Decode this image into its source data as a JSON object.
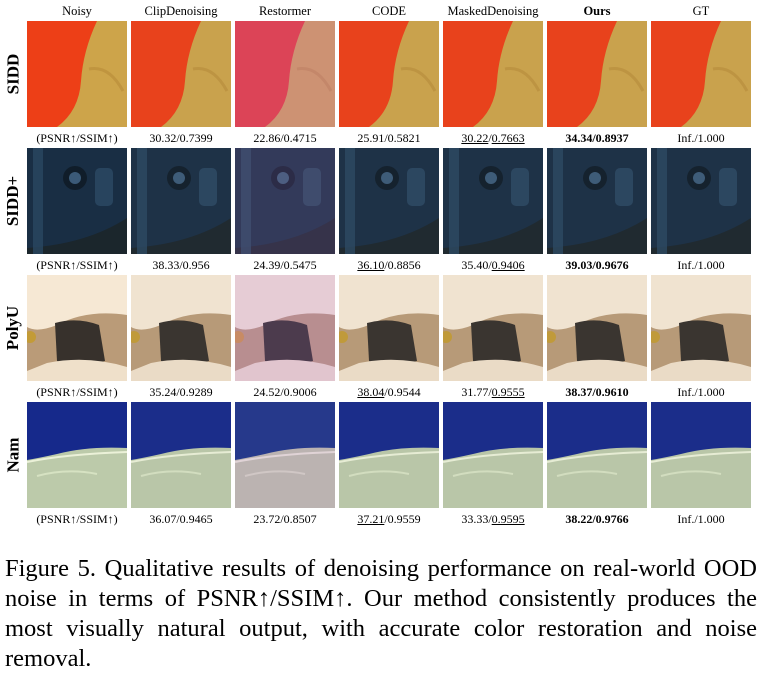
{
  "figure": {
    "columns": [
      "Noisy",
      "ClipDenoising",
      "Restormer",
      "CODE",
      "MaskedDenoising",
      "Ours",
      "GT"
    ],
    "bold_column": "Ours",
    "rows": [
      {
        "label": "SIDD",
        "scene": "orange",
        "metric_header": "(PSNR↑/SSIM↑)",
        "metrics": [
          {
            "method": "ClipDenoising",
            "psnr": "30.32",
            "ssim": "0.7399",
            "psnr_underline": false,
            "ssim_underline": false,
            "bold": false
          },
          {
            "method": "Restormer",
            "psnr": "22.86",
            "ssim": "0.4715",
            "psnr_underline": false,
            "ssim_underline": false,
            "bold": false
          },
          {
            "method": "CODE",
            "psnr": "25.91",
            "ssim": "0.5821",
            "psnr_underline": false,
            "ssim_underline": false,
            "bold": false
          },
          {
            "method": "MaskedDenoising",
            "psnr": "30.22",
            "ssim": "0.7663",
            "psnr_underline": true,
            "ssim_underline": true,
            "bold": false
          },
          {
            "method": "Ours",
            "psnr": "34.34",
            "ssim": "0.8937",
            "psnr_underline": false,
            "ssim_underline": false,
            "bold": true
          },
          {
            "method": "GT",
            "psnr": "Inf.",
            "ssim": "1.000",
            "psnr_underline": false,
            "ssim_underline": false,
            "bold": false
          }
        ]
      },
      {
        "label": "SIDD+",
        "scene": "blue",
        "metric_header": "(PSNR↑/SSIM↑)",
        "metrics": [
          {
            "method": "ClipDenoising",
            "psnr": "38.33",
            "ssim": "0.956",
            "psnr_underline": false,
            "ssim_underline": false,
            "bold": false
          },
          {
            "method": "Restormer",
            "psnr": "24.39",
            "ssim": "0.5475",
            "psnr_underline": false,
            "ssim_underline": false,
            "bold": false
          },
          {
            "method": "CODE",
            "psnr": "36.10",
            "ssim": "0.8856",
            "psnr_underline": true,
            "ssim_underline": false,
            "bold": false
          },
          {
            "method": "MaskedDenoising",
            "psnr": "35.40",
            "ssim": "0.9406",
            "psnr_underline": false,
            "ssim_underline": true,
            "bold": false
          },
          {
            "method": "Ours",
            "psnr": "39.03",
            "ssim": "0.9676",
            "psnr_underline": false,
            "ssim_underline": false,
            "bold": true
          },
          {
            "method": "GT",
            "psnr": "Inf.",
            "ssim": "1.000",
            "psnr_underline": false,
            "ssim_underline": false,
            "bold": false
          }
        ]
      },
      {
        "label": "PolyU",
        "scene": "polyu",
        "metric_header": "(PSNR↑/SSIM↑)",
        "metrics": [
          {
            "method": "ClipDenoising",
            "psnr": "35.24",
            "ssim": "0.9289",
            "psnr_underline": false,
            "ssim_underline": false,
            "bold": false
          },
          {
            "method": "Restormer",
            "psnr": "24.52",
            "ssim": "0.9006",
            "psnr_underline": false,
            "ssim_underline": false,
            "bold": false
          },
          {
            "method": "CODE",
            "psnr": "38.04",
            "ssim": "0.9544",
            "psnr_underline": true,
            "ssim_underline": false,
            "bold": false
          },
          {
            "method": "MaskedDenoising",
            "psnr": "31.77",
            "ssim": "0.9555",
            "psnr_underline": false,
            "ssim_underline": true,
            "bold": false
          },
          {
            "method": "Ours",
            "psnr": "38.37",
            "ssim": "0.9610",
            "psnr_underline": false,
            "ssim_underline": false,
            "bold": true
          },
          {
            "method": "GT",
            "psnr": "Inf.",
            "ssim": "1.000",
            "psnr_underline": false,
            "ssim_underline": false,
            "bold": false
          }
        ]
      },
      {
        "label": "Nam",
        "scene": "nam",
        "metric_header": "(PSNR↑/SSIM↑)",
        "metrics": [
          {
            "method": "ClipDenoising",
            "psnr": "36.07",
            "ssim": "0.9465",
            "psnr_underline": false,
            "ssim_underline": false,
            "bold": false
          },
          {
            "method": "Restormer",
            "psnr": "23.72",
            "ssim": "0.8507",
            "psnr_underline": false,
            "ssim_underline": false,
            "bold": false
          },
          {
            "method": "CODE",
            "psnr": "37.21",
            "ssim": "0.9559",
            "psnr_underline": true,
            "ssim_underline": false,
            "bold": false
          },
          {
            "method": "MaskedDenoising",
            "psnr": "33.33",
            "ssim": "0.9595",
            "psnr_underline": false,
            "ssim_underline": true,
            "bold": false
          },
          {
            "method": "Ours",
            "psnr": "38.22",
            "ssim": "0.9766",
            "psnr_underline": false,
            "ssim_underline": false,
            "bold": true
          },
          {
            "method": "GT",
            "psnr": "Inf.",
            "ssim": "1.000",
            "psnr_underline": false,
            "ssim_underline": false,
            "bold": false
          }
        ]
      }
    ],
    "tile_tints": {
      "Noisy": "noisy",
      "ClipDenoising": "clean",
      "Restormer": "restormer",
      "CODE": "clean",
      "MaskedDenoising": "clean",
      "Ours": "clean",
      "GT": "clean"
    },
    "colors": {
      "orange_accent": "#e8421c",
      "orange_bg": "#c9a24d",
      "blue_object": "#1e3247",
      "polyu_bg": "#b79a78",
      "nam_top": "#1b2d8a",
      "nam_bottom": "#b9c6a8"
    }
  },
  "caption": "Figure 5.  Qualitative results of denoising performance on real-world OOD noise in terms of PSNR↑/SSIM↑.  Our method consistently produces the most visually natural output, with accurate color restoration and noise removal."
}
